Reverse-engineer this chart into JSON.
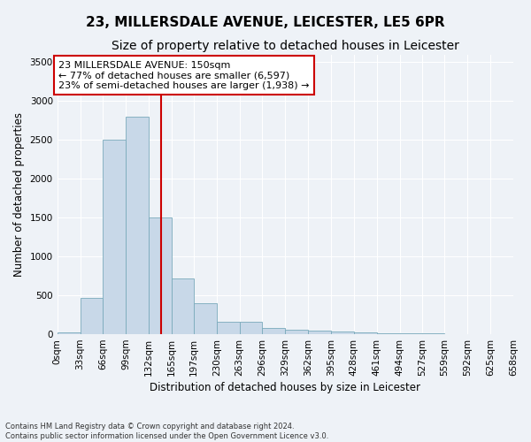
{
  "title1": "23, MILLERSDALE AVENUE, LEICESTER, LE5 6PR",
  "title2": "Size of property relative to detached houses in Leicester",
  "xlabel": "Distribution of detached houses by size in Leicester",
  "ylabel": "Number of detached properties",
  "footnote1": "Contains HM Land Registry data © Crown copyright and database right 2024.",
  "footnote2": "Contains public sector information licensed under the Open Government Licence v3.0.",
  "annotation_line1": "23 MILLERSDALE AVENUE: 150sqm",
  "annotation_line2": "← 77% of detached houses are smaller (6,597)",
  "annotation_line3": "23% of semi-detached houses are larger (1,938) →",
  "property_size": 150,
  "bin_edges": [
    0,
    33,
    66,
    99,
    132,
    165,
    197,
    230,
    263,
    296,
    329,
    362,
    395,
    428,
    461,
    494,
    527,
    559,
    592,
    625,
    658
  ],
  "bar_heights": [
    20,
    470,
    2500,
    2800,
    1500,
    720,
    400,
    160,
    160,
    80,
    60,
    50,
    40,
    25,
    15,
    10,
    8,
    5,
    3,
    2
  ],
  "bar_color": "#c8d8e8",
  "bar_edge_color": "#7aaabb",
  "vline_color": "#cc0000",
  "vline_x": 150,
  "ylim": [
    0,
    3600
  ],
  "yticks": [
    0,
    500,
    1000,
    1500,
    2000,
    2500,
    3000,
    3500
  ],
  "bg_color": "#eef2f7",
  "fig_bg_color": "#eef2f7",
  "grid_color": "#ffffff",
  "annotation_box_color": "#cc0000",
  "title1_fontsize": 11,
  "title2_fontsize": 10,
  "annotation_fontsize": 8,
  "axis_label_fontsize": 8.5,
  "ylabel_fontsize": 8.5,
  "tick_fontsize": 7.5
}
